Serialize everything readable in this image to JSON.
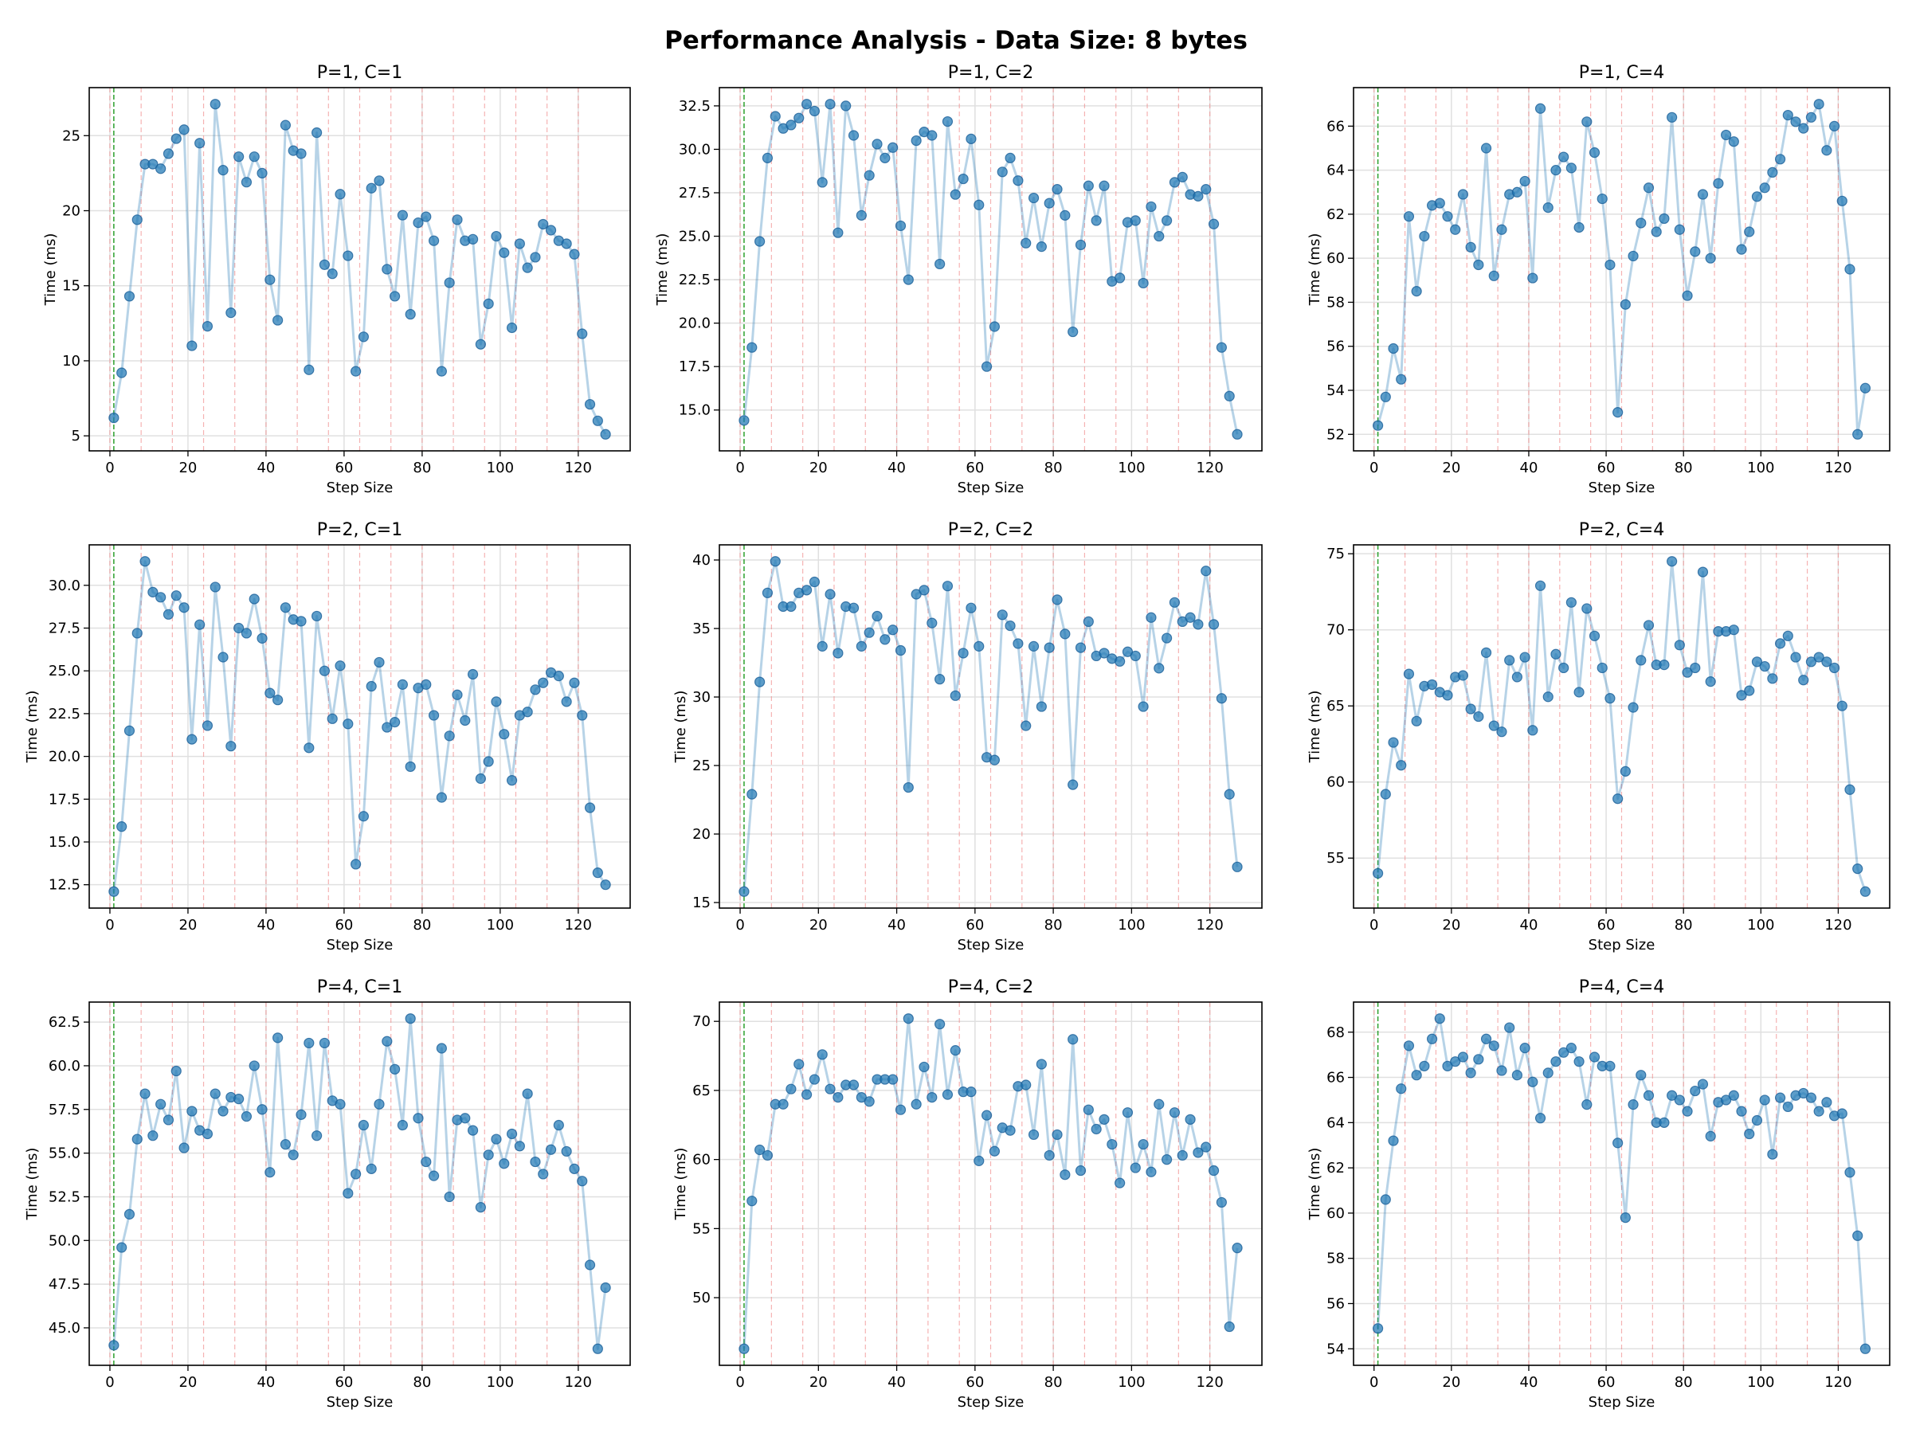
{
  "figure": {
    "title": "Performance Analysis - Data Size: 8 bytes"
  },
  "colors": {
    "series": "#1f77b4",
    "marker_edge": "#1a5f99",
    "divider_lines": "#f08080",
    "start_line": "#2ca02c",
    "grid": "#e0e0e0"
  },
  "chart_data": [
    {
      "type": "line",
      "title": "P=1, C=1",
      "xlabel": "Step Size",
      "ylabel": "Time (ms)",
      "grid": true,
      "xticks": [
        "0",
        "20",
        "40",
        "60",
        "80",
        "100",
        "120"
      ],
      "yticks": [
        "5",
        "10",
        "15",
        "20",
        "25"
      ],
      "y": [
        6.2,
        9.2,
        14.3,
        19.4,
        23.1,
        23.1,
        22.8,
        23.8,
        24.8,
        25.4,
        11.0,
        24.5,
        12.3,
        27.1,
        22.7,
        13.2,
        23.6,
        21.9,
        23.6,
        22.5,
        15.4,
        12.7,
        25.7,
        24.0,
        23.8,
        9.4,
        25.2,
        16.4,
        15.8,
        21.1,
        17.0,
        9.3,
        11.6,
        21.5,
        22.0,
        16.1,
        14.3,
        19.7,
        13.1,
        19.2,
        19.6,
        18.0,
        9.3,
        15.2,
        19.4,
        18.0,
        18.1,
        11.1,
        13.8,
        18.3,
        17.2,
        12.2,
        17.8,
        16.2,
        16.9,
        19.1,
        18.7,
        18.0,
        17.8,
        17.1,
        11.8,
        7.1,
        6.0,
        5.1
      ]
    },
    {
      "type": "line",
      "title": "P=1, C=2",
      "xlabel": "Step Size",
      "ylabel": "Time (ms)",
      "grid": true,
      "xticks": [
        "0",
        "20",
        "40",
        "60",
        "80",
        "100",
        "120"
      ],
      "yticks": [
        "15.0",
        "17.5",
        "20.0",
        "22.5",
        "25.0",
        "27.5",
        "30.0",
        "32.5"
      ],
      "y": [
        14.4,
        18.6,
        24.7,
        29.5,
        31.9,
        31.2,
        31.4,
        31.8,
        32.6,
        32.2,
        28.1,
        32.6,
        25.2,
        32.5,
        30.8,
        26.2,
        28.5,
        30.3,
        29.5,
        30.1,
        25.6,
        22.5,
        30.5,
        31.0,
        30.8,
        23.4,
        31.6,
        27.4,
        28.3,
        30.6,
        26.8,
        17.5,
        19.8,
        28.7,
        29.5,
        28.2,
        24.6,
        27.2,
        24.4,
        26.9,
        27.7,
        26.2,
        19.5,
        24.5,
        27.9,
        25.9,
        27.9,
        22.4,
        22.6,
        25.8,
        25.9,
        22.3,
        26.7,
        25.0,
        25.9,
        28.1,
        28.4,
        27.4,
        27.3,
        27.7,
        25.7,
        18.6,
        15.8,
        13.6
      ]
    },
    {
      "type": "line",
      "title": "P=1, C=4",
      "xlabel": "Step Size",
      "ylabel": "Time (ms)",
      "grid": true,
      "xticks": [
        "0",
        "20",
        "40",
        "60",
        "80",
        "100",
        "120"
      ],
      "yticks": [
        "52",
        "54",
        "56",
        "58",
        "60",
        "62",
        "64",
        "66"
      ],
      "y": [
        52.4,
        53.7,
        55.9,
        54.5,
        61.9,
        58.5,
        61.0,
        62.4,
        62.5,
        61.9,
        61.3,
        62.9,
        60.5,
        59.7,
        65.0,
        59.2,
        61.3,
        62.9,
        63.0,
        63.5,
        59.1,
        66.8,
        62.3,
        64.0,
        64.6,
        64.1,
        61.4,
        66.2,
        64.8,
        62.7,
        59.7,
        53.0,
        57.9,
        60.1,
        61.6,
        63.2,
        61.2,
        61.8,
        66.4,
        61.3,
        58.3,
        60.3,
        62.9,
        60.0,
        63.4,
        65.6,
        65.3,
        60.4,
        61.2,
        62.8,
        63.2,
        63.9,
        64.5,
        66.5,
        66.2,
        65.9,
        66.4,
        67.0,
        64.9,
        66.0,
        62.6,
        59.5,
        52.0,
        54.1
      ]
    },
    {
      "type": "line",
      "title": "P=2, C=1",
      "xlabel": "Step Size",
      "ylabel": "Time (ms)",
      "grid": true,
      "xticks": [
        "0",
        "20",
        "40",
        "60",
        "80",
        "100",
        "120"
      ],
      "yticks": [
        "12.5",
        "15.0",
        "17.5",
        "20.0",
        "22.5",
        "25.0",
        "27.5",
        "30.0"
      ],
      "y": [
        12.1,
        15.9,
        21.5,
        27.2,
        31.4,
        29.6,
        29.3,
        28.3,
        29.4,
        28.7,
        21.0,
        27.7,
        21.8,
        29.9,
        25.8,
        20.6,
        27.5,
        27.2,
        29.2,
        26.9,
        23.7,
        23.3,
        28.7,
        28.0,
        27.9,
        20.5,
        28.2,
        25.0,
        22.2,
        25.3,
        21.9,
        13.7,
        16.5,
        24.1,
        25.5,
        21.7,
        22.0,
        24.2,
        19.4,
        24.0,
        24.2,
        22.4,
        17.6,
        21.2,
        23.6,
        22.1,
        24.8,
        18.7,
        19.7,
        23.2,
        21.3,
        18.6,
        22.4,
        22.6,
        23.9,
        24.3,
        24.9,
        24.7,
        23.2,
        24.3,
        22.4,
        17.0,
        13.2,
        12.5
      ]
    },
    {
      "type": "line",
      "title": "P=2, C=2",
      "xlabel": "Step Size",
      "ylabel": "Time (ms)",
      "grid": true,
      "xticks": [
        "0",
        "20",
        "40",
        "60",
        "80",
        "100",
        "120"
      ],
      "yticks": [
        "15",
        "20",
        "25",
        "30",
        "35",
        "40"
      ],
      "y": [
        15.8,
        22.9,
        31.1,
        37.6,
        39.9,
        36.6,
        36.6,
        37.6,
        37.8,
        38.4,
        33.7,
        37.5,
        33.2,
        36.6,
        36.5,
        33.7,
        34.7,
        35.9,
        34.2,
        34.9,
        33.4,
        23.4,
        37.5,
        37.8,
        35.4,
        31.3,
        38.1,
        30.1,
        33.2,
        36.5,
        33.7,
        25.6,
        25.4,
        36.0,
        35.2,
        33.9,
        27.9,
        33.7,
        29.3,
        33.6,
        37.1,
        34.6,
        23.6,
        33.6,
        35.5,
        33.0,
        33.2,
        32.8,
        32.6,
        33.3,
        33.0,
        29.3,
        35.8,
        32.1,
        34.3,
        36.9,
        35.5,
        35.8,
        35.3,
        39.2,
        35.3,
        29.9,
        22.9,
        17.6
      ]
    },
    {
      "type": "line",
      "title": "P=2, C=4",
      "xlabel": "Step Size",
      "ylabel": "Time (ms)",
      "grid": true,
      "xticks": [
        "0",
        "20",
        "40",
        "60",
        "80",
        "100",
        "120"
      ],
      "yticks": [
        "55",
        "60",
        "65",
        "70",
        "75"
      ],
      "y": [
        54.0,
        59.2,
        62.6,
        61.1,
        67.1,
        64.0,
        66.3,
        66.4,
        65.9,
        65.7,
        66.9,
        67.0,
        64.8,
        64.3,
        68.5,
        63.7,
        63.3,
        68.0,
        66.9,
        68.2,
        63.4,
        72.9,
        65.6,
        68.4,
        67.5,
        71.8,
        65.9,
        71.4,
        69.6,
        67.5,
        65.5,
        58.9,
        60.7,
        64.9,
        68.0,
        70.3,
        67.7,
        67.7,
        74.5,
        69.0,
        67.2,
        67.5,
        73.8,
        66.6,
        69.9,
        69.9,
        70.0,
        65.7,
        66.0,
        67.9,
        67.6,
        66.8,
        69.1,
        69.6,
        68.2,
        66.7,
        67.9,
        68.2,
        67.9,
        67.5,
        65.0,
        59.5,
        54.3,
        52.8
      ]
    },
    {
      "type": "line",
      "title": "P=4, C=1",
      "xlabel": "Step Size",
      "ylabel": "Time (ms)",
      "grid": true,
      "xticks": [
        "0",
        "20",
        "40",
        "60",
        "80",
        "100",
        "120"
      ],
      "yticks": [
        "45.0",
        "47.5",
        "50.0",
        "52.5",
        "55.0",
        "57.5",
        "60.0",
        "62.5"
      ],
      "y": [
        44.0,
        49.6,
        51.5,
        55.8,
        58.4,
        56.0,
        57.8,
        56.9,
        59.7,
        55.3,
        57.4,
        56.3,
        56.1,
        58.4,
        57.4,
        58.2,
        58.1,
        57.1,
        60.0,
        57.5,
        53.9,
        61.6,
        55.5,
        54.9,
        57.2,
        61.3,
        56.0,
        61.3,
        58.0,
        57.8,
        52.7,
        53.8,
        56.6,
        54.1,
        57.8,
        61.4,
        59.8,
        56.6,
        62.7,
        57.0,
        54.5,
        53.7,
        61.0,
        52.5,
        56.9,
        57.0,
        56.3,
        51.9,
        54.9,
        55.8,
        54.4,
        56.1,
        55.4,
        58.4,
        54.5,
        53.8,
        55.2,
        56.6,
        55.1,
        54.1,
        53.4,
        48.6,
        43.8,
        47.3
      ]
    },
    {
      "type": "line",
      "title": "P=4, C=2",
      "xlabel": "Step Size",
      "ylabel": "Time (ms)",
      "grid": true,
      "xticks": [
        "0",
        "20",
        "40",
        "60",
        "80",
        "100",
        "120"
      ],
      "yticks": [
        "50",
        "55",
        "60",
        "65",
        "70"
      ],
      "y": [
        46.3,
        57.0,
        60.7,
        60.3,
        64.0,
        64.0,
        65.1,
        66.9,
        64.7,
        65.8,
        67.6,
        65.1,
        64.5,
        65.4,
        65.4,
        64.5,
        64.2,
        65.8,
        65.8,
        65.8,
        63.6,
        70.2,
        64.0,
        66.7,
        64.5,
        69.8,
        64.7,
        67.9,
        64.9,
        64.9,
        59.9,
        63.2,
        60.6,
        62.3,
        62.1,
        65.3,
        65.4,
        61.8,
        66.9,
        60.3,
        61.8,
        58.9,
        68.7,
        59.2,
        63.6,
        62.2,
        62.9,
        61.1,
        58.3,
        63.4,
        59.4,
        61.1,
        59.1,
        64.0,
        60.0,
        63.4,
        60.3,
        62.9,
        60.5,
        60.9,
        59.2,
        56.9,
        47.9,
        53.6
      ]
    },
    {
      "type": "line",
      "title": "P=4, C=4",
      "xlabel": "Step Size",
      "ylabel": "Time (ms)",
      "grid": true,
      "xticks": [
        "0",
        "20",
        "40",
        "60",
        "80",
        "100",
        "120"
      ],
      "yticks": [
        "54",
        "56",
        "58",
        "60",
        "62",
        "64",
        "66",
        "68"
      ],
      "y": [
        54.9,
        60.6,
        63.2,
        65.5,
        67.4,
        66.1,
        66.5,
        67.7,
        68.6,
        66.5,
        66.7,
        66.9,
        66.2,
        66.8,
        67.7,
        67.4,
        66.3,
        68.2,
        66.1,
        67.3,
        65.8,
        64.2,
        66.2,
        66.7,
        67.1,
        67.3,
        66.7,
        64.8,
        66.9,
        66.5,
        66.5,
        63.1,
        59.8,
        64.8,
        66.1,
        65.2,
        64.0,
        64.0,
        65.2,
        65.0,
        64.5,
        65.4,
        65.7,
        63.4,
        64.9,
        65.0,
        65.2,
        64.5,
        63.5,
        64.1,
        65.0,
        62.6,
        65.1,
        64.7,
        65.2,
        65.3,
        65.1,
        64.5,
        64.9,
        64.3,
        64.4,
        61.8,
        59.0,
        54.0
      ]
    }
  ],
  "x_values": {
    "start": 1,
    "step": 2,
    "count": 64
  },
  "divider_lines_x": [
    0,
    8,
    16,
    24,
    32,
    40,
    48,
    56,
    64,
    72,
    80,
    88,
    96,
    104,
    112,
    120
  ],
  "start_line_x": 1
}
